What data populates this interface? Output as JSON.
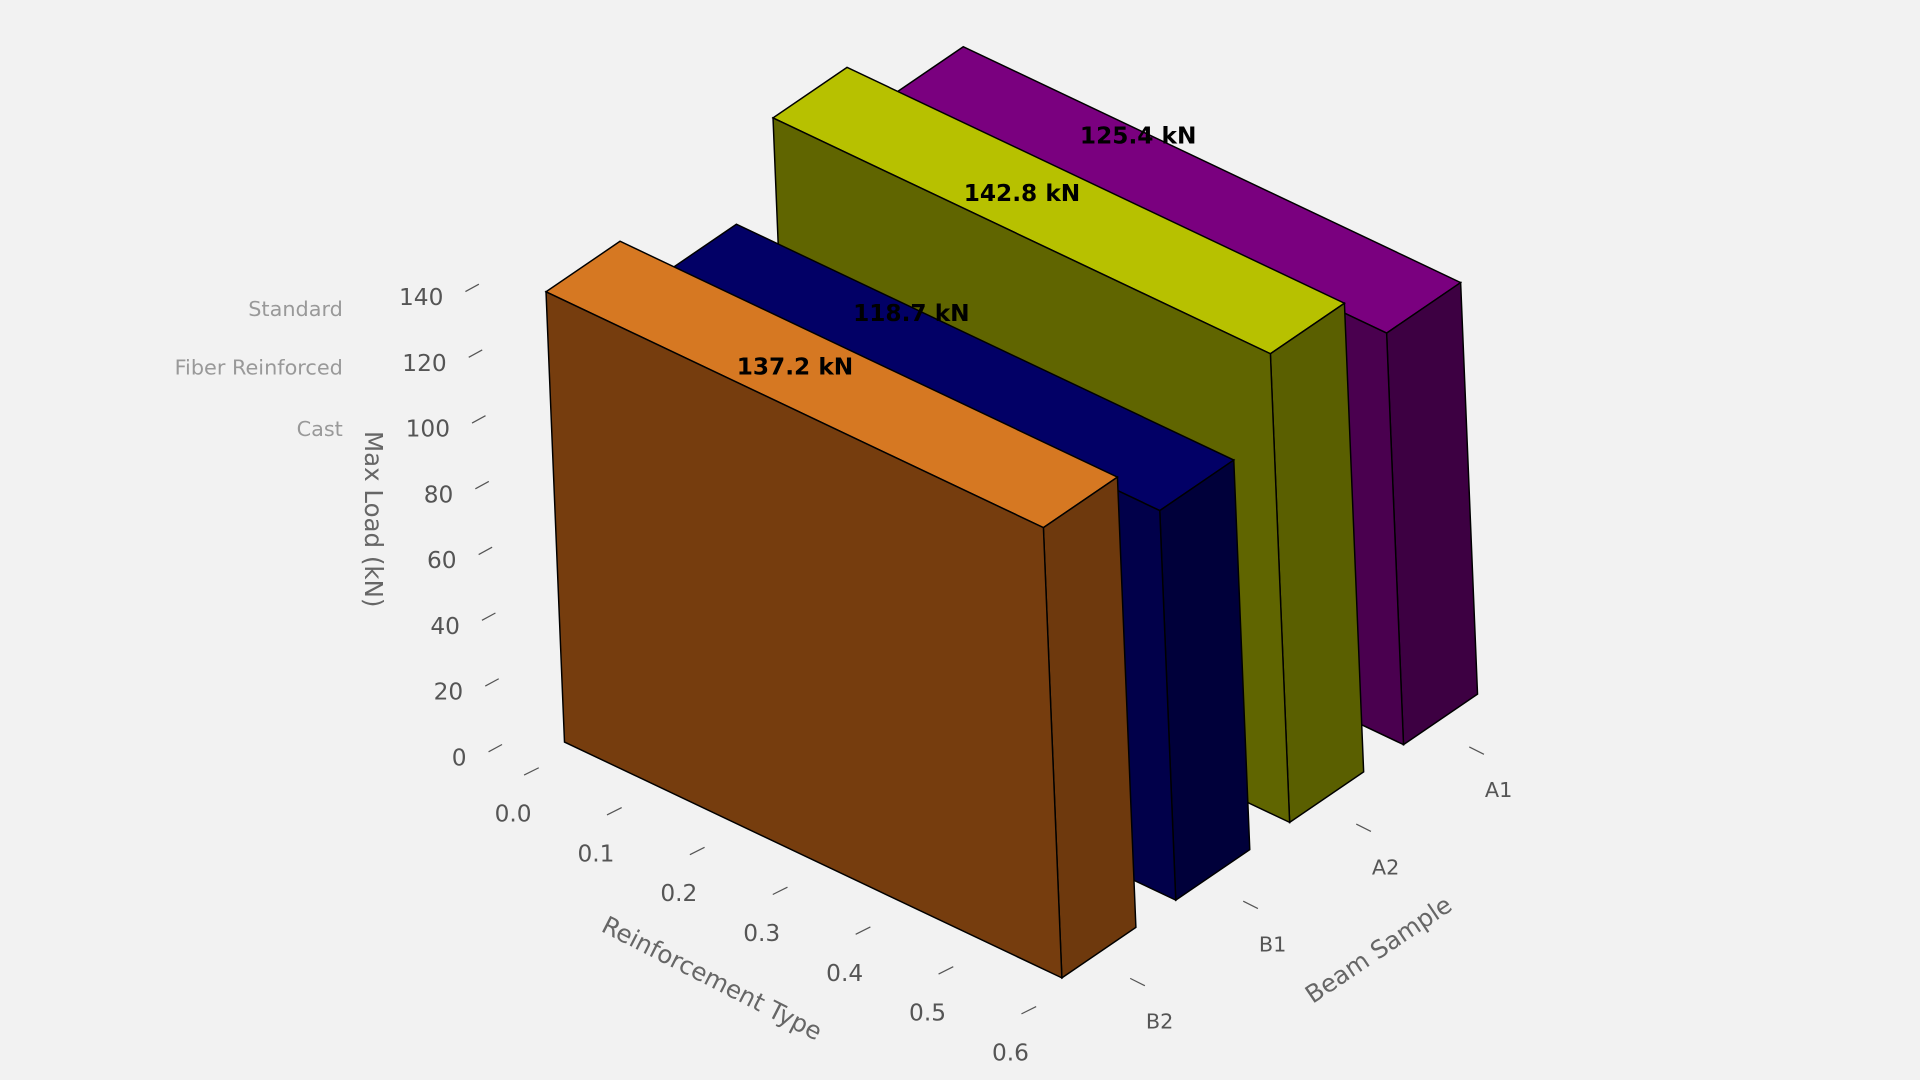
{
  "chart_data": {
    "type": "bar3d",
    "xlabel": "Reinforcement Type",
    "ylabel": "Beam Sample",
    "zlabel": "Max Load (kN)",
    "x_ticks": [
      "0.0",
      "0.1",
      "0.2",
      "0.3",
      "0.4",
      "0.5",
      "0.6"
    ],
    "y_ticks": [
      "B2",
      "B1",
      "A2",
      "A1"
    ],
    "z_ticks": [
      "0",
      "20",
      "40",
      "60",
      "80",
      "100",
      "120",
      "140"
    ],
    "zlim": [
      0,
      140
    ],
    "xlim": [
      0,
      0.6
    ],
    "category_labels": [
      "Standard",
      "Fiber Reinforced",
      "Cast"
    ],
    "bars": [
      {
        "sample": "B2",
        "value": 137.2,
        "label": "137.2 kN",
        "top": "#d67822",
        "front": "#763d0e",
        "side": "#6e390d"
      },
      {
        "sample": "B1",
        "value": 118.7,
        "label": "118.7 kN",
        "top": "#020066",
        "front": "#01004a",
        "side": "#00003a"
      },
      {
        "sample": "A2",
        "value": 142.8,
        "label": "142.8 kN",
        "top": "#b7c100",
        "front": "#606500",
        "side": "#5a5f00"
      },
      {
        "sample": "A1",
        "value": 125.4,
        "label": "125.4 kN",
        "top": "#7a007f",
        "front": "#4a004f",
        "side": "#3d0042"
      }
    ],
    "grid": false
  }
}
